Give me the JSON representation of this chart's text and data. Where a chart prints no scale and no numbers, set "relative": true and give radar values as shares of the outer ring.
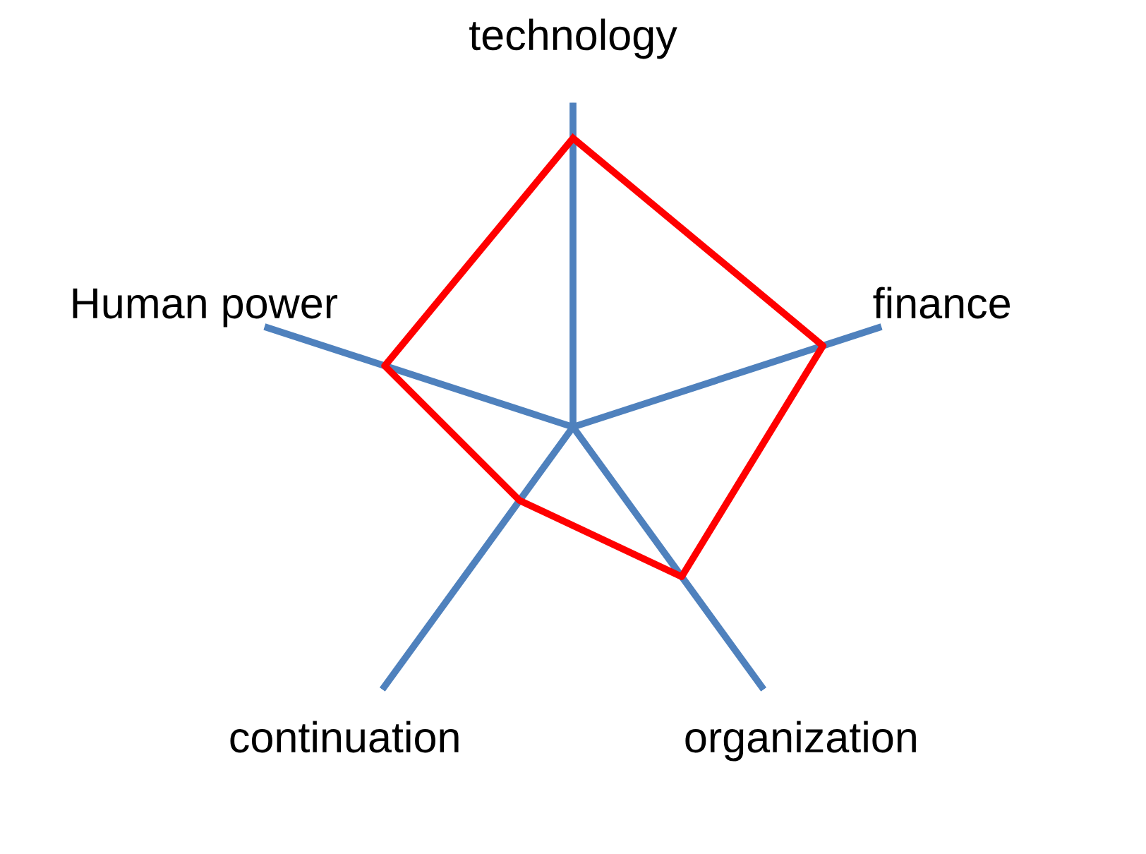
{
  "chart_data": {
    "type": "radar",
    "relative": true,
    "categories": [
      "technology",
      "finance",
      "organization",
      "continuation",
      "Human power"
    ],
    "series": [
      {
        "color": "#ff0000",
        "values": [
          0.89,
          0.81,
          0.57,
          0.28,
          0.61
        ]
      }
    ]
  }
}
